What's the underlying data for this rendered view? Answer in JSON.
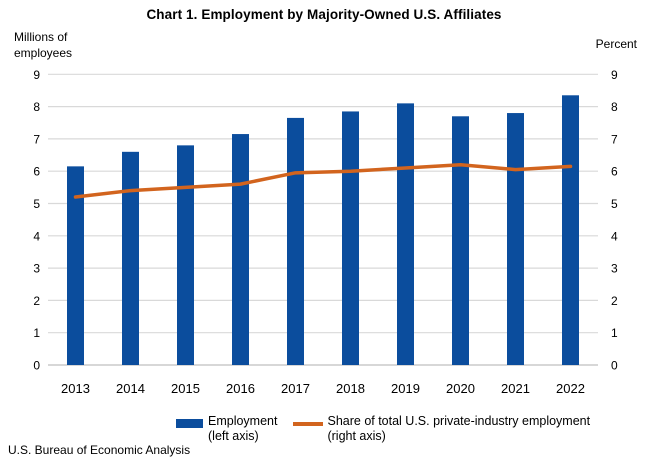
{
  "header": {
    "title": "Chart 1. Employment by Majority-Owned U.S. Affiliates"
  },
  "footer": {
    "source": "U.S. Bureau of Economic Analysis"
  },
  "chart_data": {
    "type": "bar",
    "title": "Chart 1. Employment by Majority-Owned U.S. Affiliates",
    "categories": [
      "2013",
      "2014",
      "2015",
      "2016",
      "2017",
      "2018",
      "2019",
      "2020",
      "2021",
      "2022"
    ],
    "series": [
      {
        "name": "Employment",
        "type": "bar",
        "axis": "left",
        "color": "#0b4d9d",
        "values": [
          6.15,
          6.6,
          6.8,
          7.15,
          7.65,
          7.85,
          8.1,
          7.7,
          7.8,
          8.35
        ]
      },
      {
        "name": "Share of total U.S. private-industry employment",
        "type": "line",
        "axis": "right",
        "color": "#d2641e",
        "values": [
          5.2,
          5.4,
          5.5,
          5.6,
          5.95,
          6.0,
          6.1,
          6.2,
          6.05,
          6.15
        ]
      }
    ],
    "left_axis": {
      "label": "Millions of employees",
      "label_lines": [
        "Millions of",
        "employees"
      ],
      "min": 0,
      "max": 9,
      "tick_step": 1,
      "ticks": [
        0,
        1,
        2,
        3,
        4,
        5,
        6,
        7,
        8,
        9
      ]
    },
    "right_axis": {
      "label": "Percent",
      "min": 0,
      "max": 9,
      "tick_step": 1,
      "ticks": [
        0,
        1,
        2,
        3,
        4,
        5,
        6,
        7,
        8,
        9
      ]
    },
    "grid": true,
    "grid_color": "#d9d9d9",
    "baseline_color": "#bfbfbf",
    "legend_position": "bottom",
    "legend": [
      {
        "label": "Employment",
        "sublabel": "(left axis)",
        "swatch": "bar"
      },
      {
        "label": "Share of total U.S. private-industry employment",
        "sublabel": "(right axis)",
        "swatch": "line"
      }
    ]
  }
}
